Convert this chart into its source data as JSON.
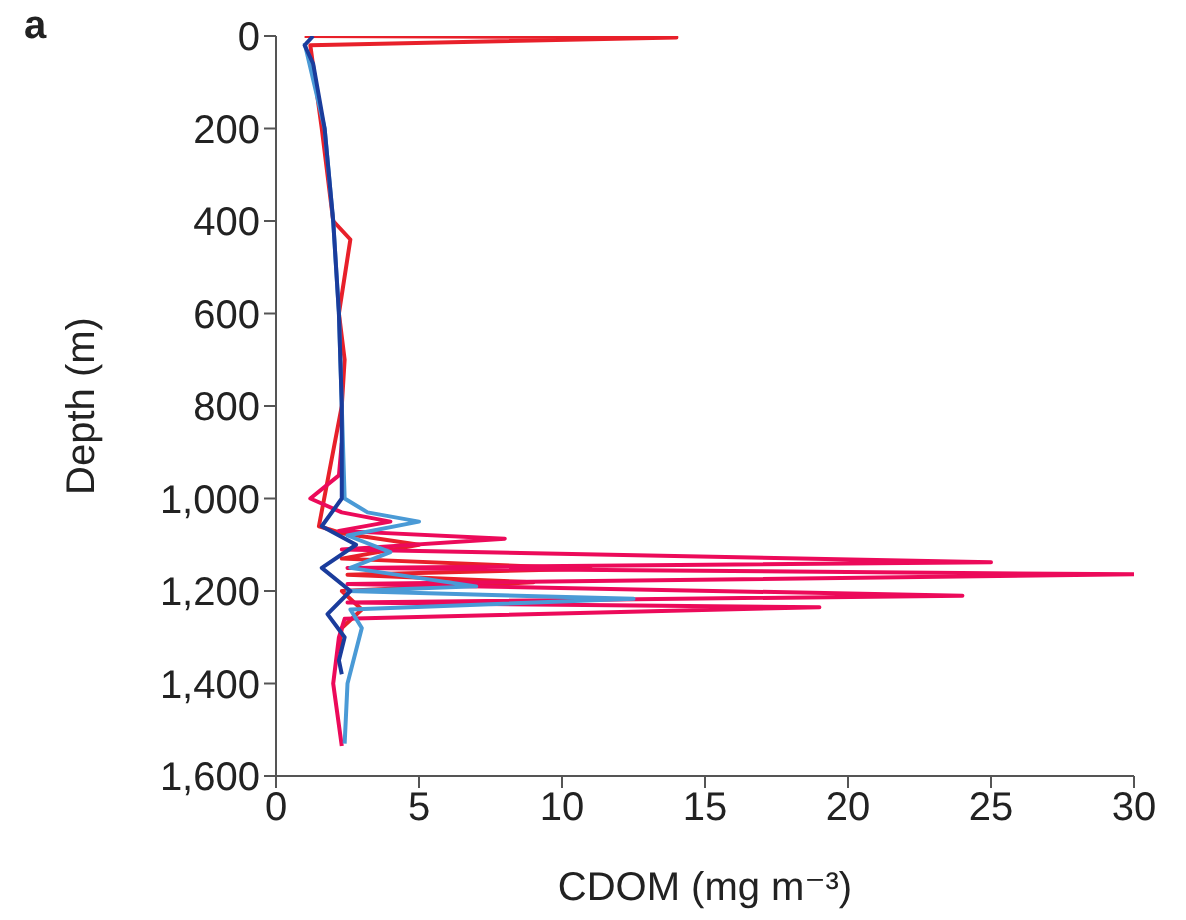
{
  "chart_data": {
    "type": "line",
    "xlabel": "CDOM (mg m⁻³)",
    "ylabel": "Depth (m)",
    "annotations": [
      "a"
    ],
    "xlim": [
      0,
      30
    ],
    "xticks": [
      0,
      5,
      10,
      15,
      20,
      25,
      30
    ],
    "ylim": [
      1600,
      0
    ],
    "yticks": [
      0,
      200,
      400,
      600,
      800,
      {
        "value": 1000,
        "label": "1,000"
      },
      {
        "value": 1200,
        "label": "1,200"
      },
      {
        "value": 1400,
        "label": "1,400"
      },
      {
        "value": 1600,
        "label": "1,600"
      }
    ],
    "grid": false,
    "legend": false,
    "marker": "none",
    "line_style": "solid",
    "series": [
      {
        "color": "#e8202a",
        "x": [
          1,
          14,
          1.2,
          1.6,
          2.0,
          2.6,
          2.2,
          2.4,
          2.3,
          1.5,
          2.3,
          5,
          2.3,
          11,
          2.5,
          9,
          2.3,
          3,
          2.3,
          2.2
        ],
        "values": [
          0,
          3,
          20,
          200,
          400,
          440,
          600,
          700,
          800,
          1060,
          1075,
          1100,
          1130,
          1152,
          1165,
          1181,
          1200,
          1240,
          1280,
          1330
        ]
      },
      {
        "color": "#ec0a5a",
        "x": [
          2.3,
          2.2,
          1.2,
          2.3,
          4,
          2.2,
          8,
          2.3,
          25,
          2.5,
          30,
          2.5,
          24,
          2.5,
          19,
          2.4,
          2.2,
          2.0,
          2.3
        ],
        "values": [
          880,
          950,
          1000,
          1030,
          1050,
          1070,
          1087,
          1110,
          1138,
          1150,
          1164,
          1185,
          1210,
          1225,
          1235,
          1260,
          1300,
          1400,
          1535
        ]
      },
      {
        "color": "#4a9ad6",
        "x": [
          1.0,
          1.7,
          2.0,
          2.2,
          2.3,
          2.4,
          3.2,
          5,
          2.5,
          4,
          2.6,
          7,
          2.5,
          12.5,
          2.6,
          3,
          2.5,
          2.4
        ],
        "values": [
          15,
          200,
          400,
          600,
          800,
          1000,
          1030,
          1050,
          1080,
          1116,
          1150,
          1190,
          1200,
          1217,
          1240,
          1280,
          1400,
          1530
        ]
      },
      {
        "color": "#1a3c9c",
        "x": [
          1.3,
          1.0,
          1.3,
          1.7,
          2.0,
          2.2,
          2.3,
          2.3,
          1.6,
          2.8,
          1.6,
          2.6,
          1.8,
          2.4,
          2.2,
          2.3
        ],
        "values": [
          0,
          20,
          60,
          200,
          400,
          600,
          800,
          1000,
          1060,
          1100,
          1150,
          1200,
          1250,
          1300,
          1350,
          1380
        ]
      }
    ]
  }
}
